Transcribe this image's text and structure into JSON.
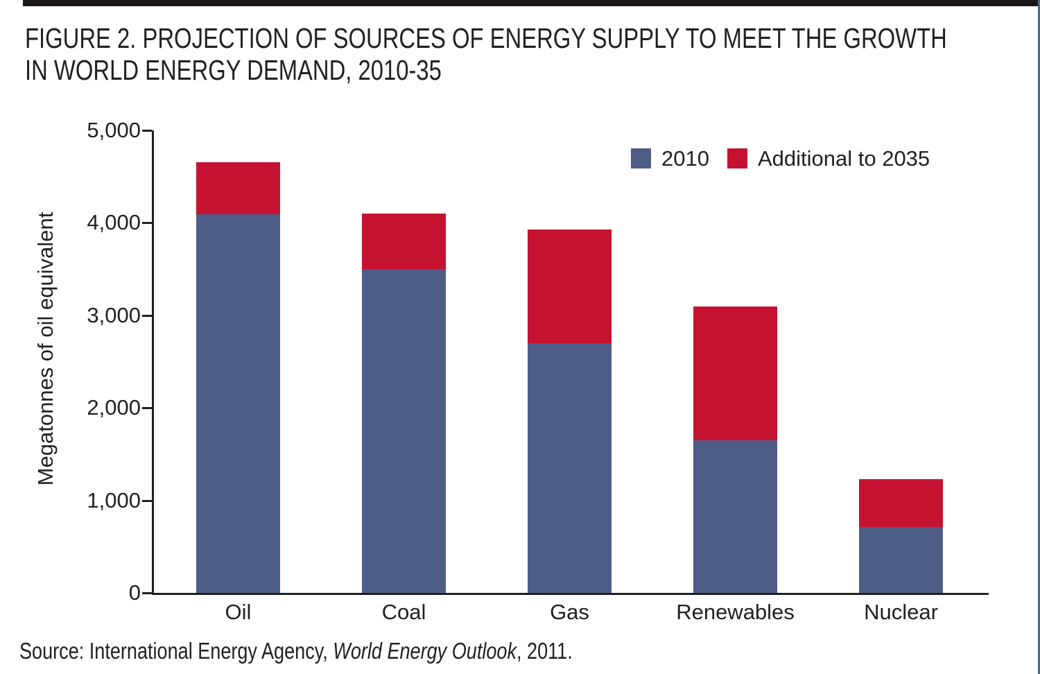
{
  "page": {
    "title_line1": "FIGURE 2. PROJECTION OF SOURCES OF ENERGY SUPPLY TO MEET THE GROWTH",
    "title_line2": "IN WORLD ENERGY DEMAND, 2010-35",
    "source": {
      "prefix": "Source: International Energy Agency, ",
      "italic": "World Energy Outlook",
      "suffix": ", 2011."
    }
  },
  "chart_data": {
    "type": "bar",
    "stacked": true,
    "title": "FIGURE 2. PROJECTION OF SOURCES OF ENERGY SUPPLY TO MEET THE GROWTH IN WORLD ENERGY DEMAND, 2010-35",
    "categories": [
      "Oil",
      "Coal",
      "Gas",
      "Renewables",
      "Nuclear"
    ],
    "series": [
      {
        "name": "2010",
        "color": "#4e5d85",
        "values": [
          4090,
          3500,
          2700,
          1650,
          710
        ]
      },
      {
        "name": "Additional to 2035",
        "color": "#c51230",
        "values": [
          560,
          600,
          1230,
          1450,
          520
        ]
      }
    ],
    "totals": [
      4650,
      4100,
      3930,
      3100,
      1230
    ],
    "xlabel": "",
    "ylabel": "Megatonnes of oil equivalent",
    "ylim": [
      0,
      5000
    ],
    "yticks": {
      "values": [
        0,
        1000,
        2000,
        3000,
        4000,
        5000
      ],
      "labels": [
        "0",
        "1,000",
        "2,000",
        "3,000",
        "4,000",
        "5,000"
      ]
    },
    "grid": false,
    "legend_position": "top-right"
  },
  "colors": {
    "axis": "#231f20",
    "text": "#231f20",
    "top_rule": "#1a1617",
    "right_rule": "#4c6a7f",
    "bar_2010": "#4e5d85",
    "bar_additional": "#c51230"
  }
}
